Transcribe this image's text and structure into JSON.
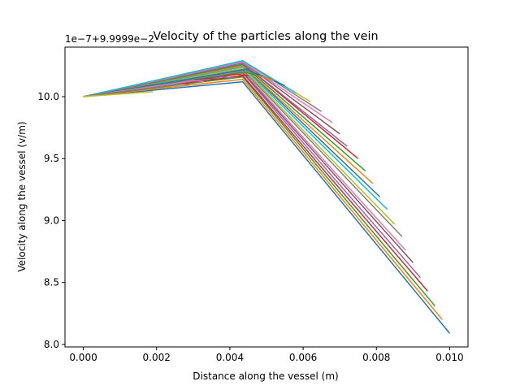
{
  "chart_data": {
    "type": "line",
    "title": "Velocity of the particles along the vein",
    "xlabel": "Distance along the vessel (m)",
    "ylabel": "Velocity along the vessel (v/m)",
    "offset_label": "1e−7+9.9999e−2",
    "xlim": [
      -0.0005,
      0.0105
    ],
    "ylim": [
      7.98,
      10.4
    ],
    "x_ticks": [
      0.0,
      0.002,
      0.004,
      0.006,
      0.008,
      0.01
    ],
    "x_tick_labels": [
      "0.000",
      "0.002",
      "0.004",
      "0.006",
      "0.008",
      "0.010"
    ],
    "y_ticks": [
      8.0,
      8.5,
      9.0,
      9.5,
      10.0
    ],
    "y_tick_labels": [
      "8.0",
      "8.5",
      "9.0",
      "9.5",
      "10.0"
    ],
    "grid": false,
    "legend": "none",
    "series": [
      {
        "color": "#1f77b4",
        "points": [
          [
            0,
            10.0
          ],
          [
            0.00435,
            10.12
          ],
          [
            0.01,
            8.09
          ]
        ]
      },
      {
        "color": "#ff7f0e",
        "points": [
          [
            0,
            10.0
          ],
          [
            0.00435,
            10.14
          ],
          [
            0.0098,
            8.2
          ]
        ]
      },
      {
        "color": "#2ca02c",
        "points": [
          [
            0,
            10.0
          ],
          [
            0.00435,
            10.16
          ],
          [
            0.0096,
            8.31
          ]
        ]
      },
      {
        "color": "#d62728",
        "points": [
          [
            0,
            10.0
          ],
          [
            0.00435,
            10.17
          ],
          [
            0.0094,
            8.43
          ]
        ]
      },
      {
        "color": "#9467bd",
        "points": [
          [
            0,
            10.0
          ],
          [
            0.00435,
            10.19
          ],
          [
            0.0092,
            8.54
          ]
        ]
      },
      {
        "color": "#8c564b",
        "points": [
          [
            0,
            10.0
          ],
          [
            0.00435,
            10.2
          ],
          [
            0.009,
            8.66
          ]
        ]
      },
      {
        "color": "#e377c2",
        "points": [
          [
            0,
            10.0
          ],
          [
            0.00435,
            10.21
          ],
          [
            0.0088,
            8.76
          ]
        ]
      },
      {
        "color": "#7f7f7f",
        "points": [
          [
            0,
            10.0
          ],
          [
            0.00435,
            10.22
          ],
          [
            0.0087,
            8.87
          ]
        ]
      },
      {
        "color": "#bcbd22",
        "points": [
          [
            0,
            10.0
          ],
          [
            0.00435,
            10.23
          ],
          [
            0.0085,
            8.97
          ]
        ]
      },
      {
        "color": "#17becf",
        "points": [
          [
            0,
            10.0
          ],
          [
            0.00435,
            10.24
          ],
          [
            0.0083,
            9.09
          ]
        ]
      },
      {
        "color": "#1f77b4",
        "points": [
          [
            0,
            10.0
          ],
          [
            0.00435,
            10.25
          ],
          [
            0.0081,
            9.19
          ]
        ]
      },
      {
        "color": "#ff7f0e",
        "points": [
          [
            0,
            10.0
          ],
          [
            0.00435,
            10.25
          ],
          [
            0.0079,
            9.3
          ]
        ]
      },
      {
        "color": "#2ca02c",
        "points": [
          [
            0,
            10.0
          ],
          [
            0.00435,
            10.26
          ],
          [
            0.0077,
            9.4
          ]
        ]
      },
      {
        "color": "#d62728",
        "points": [
          [
            0,
            10.0
          ],
          [
            0.00435,
            10.27
          ],
          [
            0.0075,
            9.5
          ]
        ]
      },
      {
        "color": "#9467bd",
        "points": [
          [
            0,
            10.0
          ],
          [
            0.00435,
            10.27
          ],
          [
            0.0072,
            9.6
          ]
        ]
      },
      {
        "color": "#8c564b",
        "points": [
          [
            0,
            10.0
          ],
          [
            0.00435,
            10.28
          ],
          [
            0.007,
            9.7
          ]
        ]
      },
      {
        "color": "#e377c2",
        "points": [
          [
            0,
            10.0
          ],
          [
            0.00435,
            10.28
          ],
          [
            0.0068,
            9.79
          ]
        ]
      },
      {
        "color": "#7f7f7f",
        "points": [
          [
            0,
            10.0
          ],
          [
            0.00435,
            10.29
          ],
          [
            0.0065,
            9.88
          ]
        ]
      },
      {
        "color": "#bcbd22",
        "points": [
          [
            0,
            10.0
          ],
          [
            0.00435,
            10.29
          ],
          [
            0.0062,
            9.96
          ]
        ]
      },
      {
        "color": "#17becf",
        "points": [
          [
            0,
            10.0
          ],
          [
            0.00435,
            10.29
          ],
          [
            0.0058,
            10.03
          ]
        ]
      },
      {
        "color": "#1f77b4",
        "points": [
          [
            0,
            10.0
          ],
          [
            0.00445,
            10.22
          ],
          [
            0.0055,
            10.09
          ]
        ]
      },
      {
        "color": "#ff7f0e",
        "points": [
          [
            0,
            10.0
          ],
          [
            0.00445,
            10.2
          ],
          [
            0.0052,
            10.13
          ]
        ]
      },
      {
        "color": "#2ca02c",
        "points": [
          [
            0,
            10.0
          ],
          [
            0.0044,
            10.2
          ],
          [
            0.0048,
            10.17
          ]
        ]
      },
      {
        "color": "#d62728",
        "points": [
          [
            0,
            10.0
          ],
          [
            0.0042,
            10.18
          ],
          [
            0.0045,
            10.17
          ]
        ]
      },
      {
        "color": "#9467bd",
        "points": [
          [
            0,
            10.0
          ],
          [
            0.0038,
            10.16
          ],
          [
            0.0041,
            10.15
          ]
        ]
      },
      {
        "color": "#8c564b",
        "points": [
          [
            0,
            10.0
          ],
          [
            0.0034,
            10.15
          ],
          [
            0.0037,
            10.14
          ]
        ]
      },
      {
        "color": "#e377c2",
        "points": [
          [
            0,
            10.0
          ],
          [
            0.003,
            10.13
          ],
          [
            0.0033,
            10.12
          ]
        ]
      },
      {
        "color": "#7f7f7f",
        "points": [
          [
            0,
            10.0
          ],
          [
            0.0026,
            10.1
          ],
          [
            0.0029,
            10.1
          ]
        ]
      },
      {
        "color": "#bcbd22",
        "points": [
          [
            0,
            10.0
          ],
          [
            0.0019,
            10.04
          ]
        ]
      }
    ]
  }
}
